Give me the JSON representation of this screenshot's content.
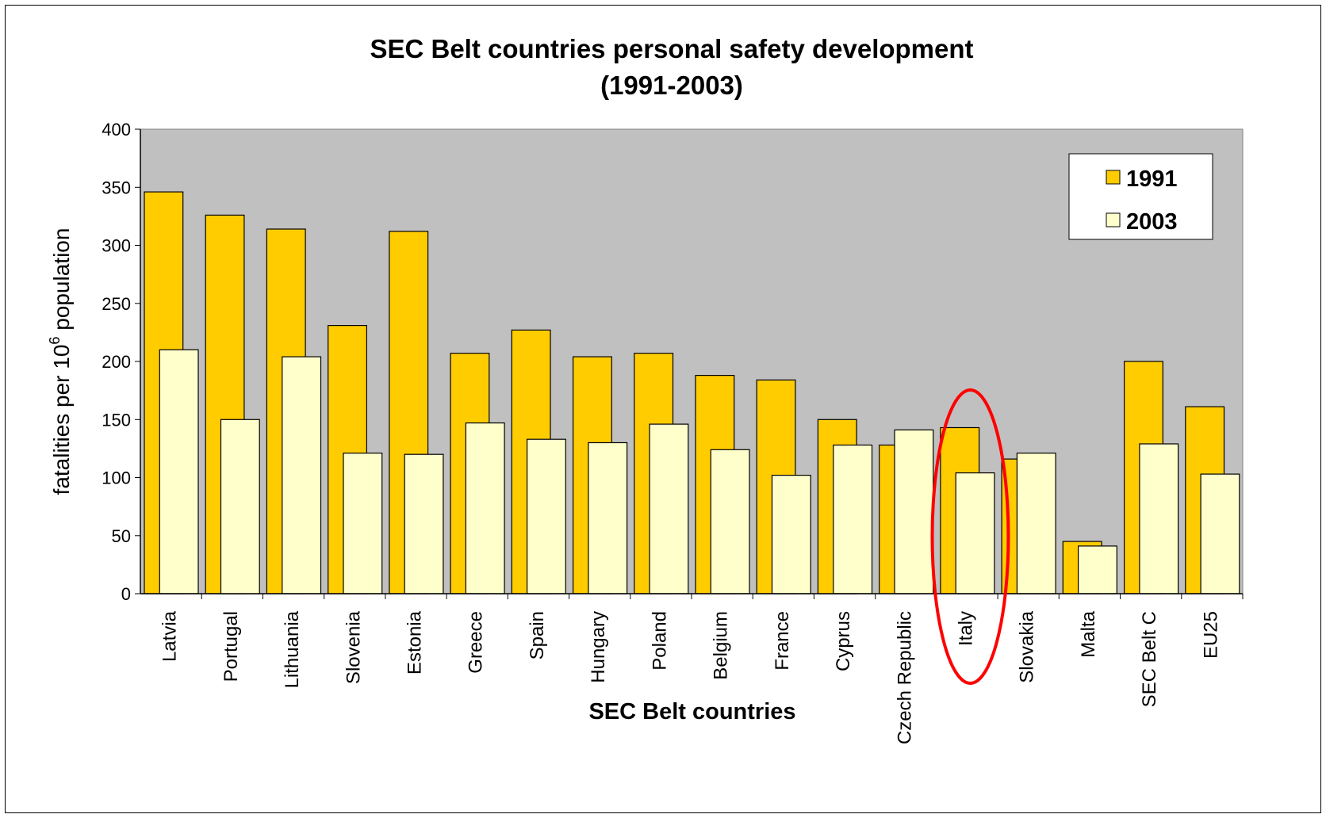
{
  "chart_data": {
    "type": "bar",
    "title": "SEC Belt countries personal safety development",
    "subtitle": "(1991-2003)",
    "xlabel": "SEC Belt countries",
    "ylabel_main": "fatalities per 10",
    "ylabel_sup": "6",
    "ylabel_tail": " population",
    "ylim": [
      0,
      400
    ],
    "yticks": [
      0,
      50,
      100,
      150,
      200,
      250,
      300,
      350,
      400
    ],
    "grid": false,
    "legend_position": "top-right",
    "plot_background": "#c0c0c0",
    "highlight": {
      "category": "Italy",
      "shape": "ellipse",
      "color": "#ff0000"
    },
    "categories": [
      "Latvia",
      "Portugal",
      "Lithuania",
      "Slovenia",
      "Estonia",
      "Greece",
      "Spain",
      "Hungary",
      "Poland",
      "Belgium",
      "France",
      "Cyprus",
      "Czech Republic",
      "Italy",
      "Slovakia",
      "Malta",
      "SEC Belt C",
      "EU25"
    ],
    "series": [
      {
        "name": "1991",
        "color": "#ffcc00",
        "values": [
          346,
          326,
          314,
          231,
          312,
          207,
          227,
          204,
          207,
          188,
          184,
          150,
          128,
          143,
          116,
          45,
          200,
          161
        ]
      },
      {
        "name": "2003",
        "color": "#ffffcc",
        "values": [
          210,
          150,
          204,
          121,
          120,
          147,
          133,
          130,
          146,
          124,
          102,
          128,
          141,
          104,
          121,
          41,
          129,
          103
        ]
      }
    ]
  }
}
